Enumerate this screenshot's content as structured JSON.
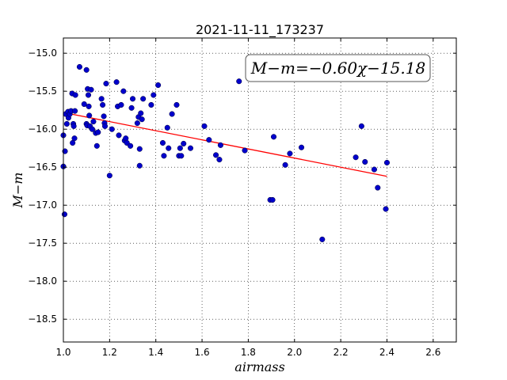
{
  "chart_data": {
    "type": "scatter",
    "title": "2021-11-11_173237",
    "xlabel": "airmass",
    "ylabel": "M−m",
    "xlim": [
      1.0,
      2.7
    ],
    "ylim": [
      -18.8,
      -14.8
    ],
    "y_inverted": true,
    "grid": true,
    "x_ticks": [
      1.0,
      1.2,
      1.4,
      1.6,
      1.8,
      2.0,
      2.2,
      2.4,
      2.6
    ],
    "x_tick_labels": [
      "1.0",
      "1.2",
      "1.4",
      "1.6",
      "1.8",
      "2.0",
      "2.2",
      "2.4",
      "2.6"
    ],
    "y_ticks": [
      -15.0,
      -15.5,
      -16.0,
      -16.5,
      -17.0,
      -17.5,
      -18.0,
      -18.5
    ],
    "y_tick_labels": [
      "−15.0",
      "−15.5",
      "−16.0",
      "−16.5",
      "−17.0",
      "−17.5",
      "−18.0",
      "−18.5"
    ],
    "annotation": "M−m=−0.60χ−15.18",
    "fit": {
      "slope": -0.6,
      "intercept": -15.18,
      "x_range": [
        1.0,
        2.4
      ],
      "color": "#ff0000"
    },
    "point_color": "#0000cc",
    "points": [
      [
        1.0,
        -16.08
      ],
      [
        1.0,
        -16.49
      ],
      [
        1.005,
        -17.12
      ],
      [
        1.007,
        -16.29
      ],
      [
        1.01,
        -15.8
      ],
      [
        1.015,
        -15.93
      ],
      [
        1.02,
        -15.77
      ],
      [
        1.022,
        -15.85
      ],
      [
        1.028,
        -15.8
      ],
      [
        1.033,
        -15.76
      ],
      [
        1.038,
        -15.53
      ],
      [
        1.04,
        -16.18
      ],
      [
        1.043,
        -15.93
      ],
      [
        1.045,
        -15.96
      ],
      [
        1.048,
        -16.12
      ],
      [
        1.05,
        -15.76
      ],
      [
        1.052,
        -15.55
      ],
      [
        1.07,
        -15.18
      ],
      [
        1.09,
        -15.67
      ],
      [
        1.1,
        -15.22
      ],
      [
        1.1,
        -15.93
      ],
      [
        1.103,
        -15.95
      ],
      [
        1.105,
        -15.47
      ],
      [
        1.108,
        -15.55
      ],
      [
        1.11,
        -15.7
      ],
      [
        1.112,
        -15.82
      ],
      [
        1.115,
        -15.96
      ],
      [
        1.12,
        -15.48
      ],
      [
        1.125,
        -16.0
      ],
      [
        1.13,
        -15.9
      ],
      [
        1.14,
        -16.05
      ],
      [
        1.145,
        -16.22
      ],
      [
        1.15,
        -16.04
      ],
      [
        1.165,
        -15.6
      ],
      [
        1.17,
        -15.68
      ],
      [
        1.175,
        -15.83
      ],
      [
        1.178,
        -15.92
      ],
      [
        1.18,
        -15.96
      ],
      [
        1.185,
        -15.4
      ],
      [
        1.2,
        -16.61
      ],
      [
        1.21,
        -16.0
      ],
      [
        1.23,
        -15.38
      ],
      [
        1.235,
        -15.7
      ],
      [
        1.24,
        -16.08
      ],
      [
        1.25,
        -15.68
      ],
      [
        1.26,
        -15.5
      ],
      [
        1.265,
        -16.15
      ],
      [
        1.27,
        -16.12
      ],
      [
        1.275,
        -16.18
      ],
      [
        1.29,
        -16.22
      ],
      [
        1.295,
        -15.72
      ],
      [
        1.3,
        -15.6
      ],
      [
        1.32,
        -15.92
      ],
      [
        1.325,
        -15.84
      ],
      [
        1.33,
        -16.26
      ],
      [
        1.335,
        -15.79
      ],
      [
        1.34,
        -15.87
      ],
      [
        1.345,
        -15.6
      ],
      [
        1.38,
        -15.68
      ],
      [
        1.39,
        -15.55
      ],
      [
        1.41,
        -15.42
      ],
      [
        1.43,
        -16.18
      ],
      [
        1.435,
        -16.35
      ],
      [
        1.45,
        -15.98
      ],
      [
        1.455,
        -16.25
      ],
      [
        1.47,
        -15.8
      ],
      [
        1.49,
        -15.68
      ],
      [
        1.5,
        -16.35
      ],
      [
        1.505,
        -16.25
      ],
      [
        1.51,
        -16.35
      ],
      [
        1.52,
        -16.19
      ],
      [
        1.55,
        -16.25
      ],
      [
        1.61,
        -15.96
      ],
      [
        1.63,
        -16.14
      ],
      [
        1.66,
        -16.34
      ],
      [
        1.675,
        -16.4
      ],
      [
        1.68,
        -16.21
      ],
      [
        1.76,
        -15.37
      ],
      [
        1.785,
        -16.28
      ],
      [
        1.895,
        -16.93
      ],
      [
        1.905,
        -16.93
      ],
      [
        1.91,
        -16.1
      ],
      [
        1.96,
        -16.47
      ],
      [
        1.98,
        -16.32
      ],
      [
        2.03,
        -16.24
      ],
      [
        2.12,
        -17.45
      ],
      [
        2.265,
        -16.37
      ],
      [
        2.29,
        -15.96
      ],
      [
        2.305,
        -16.43
      ],
      [
        2.345,
        -16.53
      ],
      [
        2.36,
        -16.77
      ],
      [
        2.395,
        -17.05
      ],
      [
        2.4,
        -16.44
      ],
      [
        1.33,
        -16.48
      ]
    ]
  }
}
